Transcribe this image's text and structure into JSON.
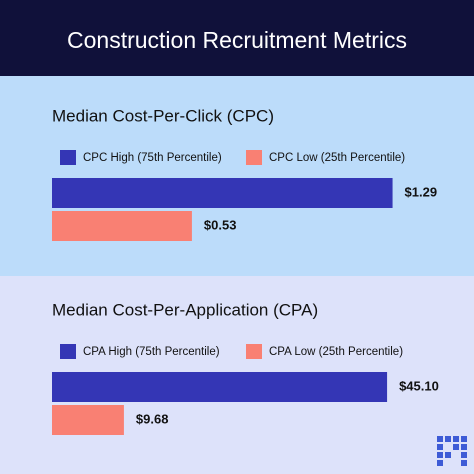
{
  "header": {
    "title": "Construction Recruitment Metrics"
  },
  "chart_data": [
    {
      "type": "bar",
      "orientation": "horizontal",
      "title": "Median Cost-Per-Click (CPC)",
      "xlim": [
        0,
        1.5
      ],
      "series": [
        {
          "name": "CPC High (75th Percentile)",
          "color": "#3436b5",
          "values": [
            1.29
          ],
          "value_labels": [
            "$1.29"
          ]
        },
        {
          "name": "CPC Low (25th Percentile)",
          "color": "#f98073",
          "values": [
            0.53
          ],
          "value_labels": [
            "$0.53"
          ]
        }
      ]
    },
    {
      "type": "bar",
      "orientation": "horizontal",
      "title": "Median Cost-Per-Application (CPA)",
      "xlim": [
        0,
        53.3
      ],
      "series": [
        {
          "name": "CPA High (75th Percentile)",
          "color": "#3436b5",
          "values": [
            45.1
          ],
          "value_labels": [
            "$45.10"
          ]
        },
        {
          "name": "CPA Low (25th Percentile)",
          "color": "#f98073",
          "values": [
            9.68
          ],
          "value_labels": [
            "$9.68"
          ]
        }
      ]
    }
  ]
}
